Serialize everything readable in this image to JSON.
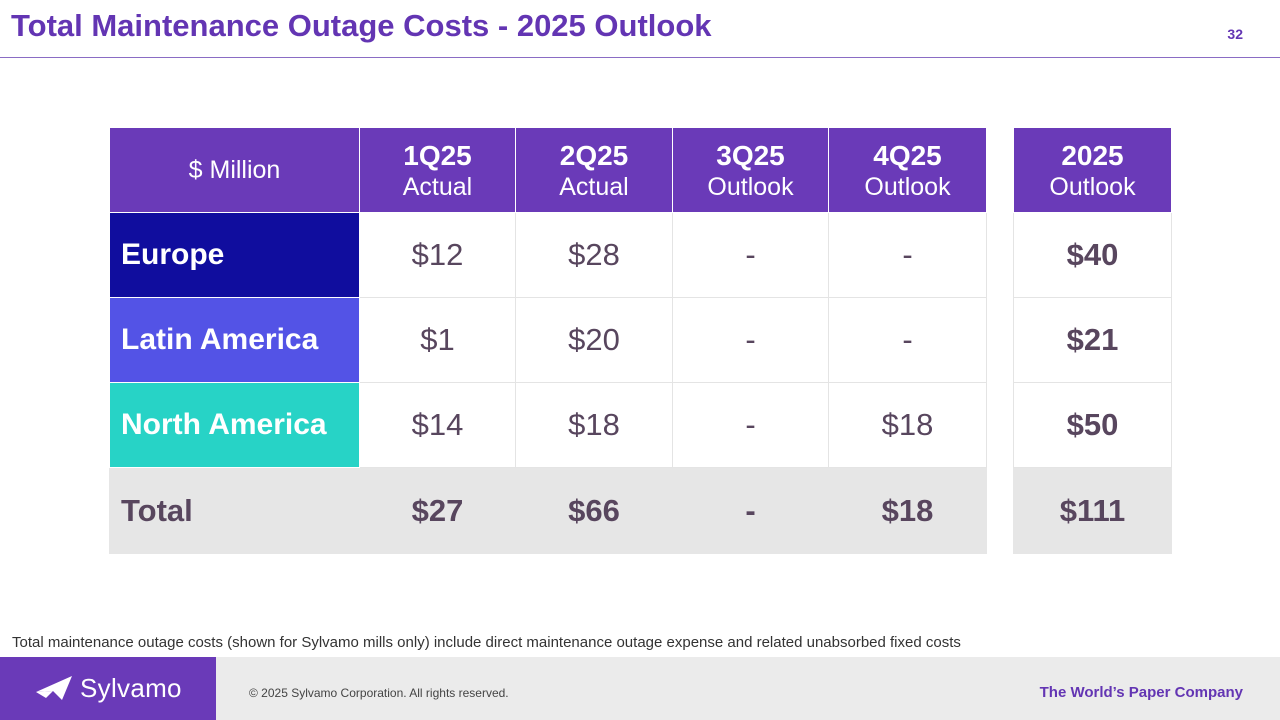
{
  "header": {
    "title": "Total Maintenance Outage Costs - 2025 Outlook",
    "page_number": "32"
  },
  "table": {
    "unit_label": "$ Million",
    "columns": [
      {
        "period": "1Q25",
        "type": "Actual"
      },
      {
        "period": "2Q25",
        "type": "Actual"
      },
      {
        "period": "3Q25",
        "type": "Outlook"
      },
      {
        "period": "4Q25",
        "type": "Outlook"
      }
    ],
    "year_column": {
      "period": "2025",
      "type": "Outlook"
    },
    "rows": [
      {
        "region": "Europe",
        "color": "#100d9e",
        "values": [
          "$12",
          "$28",
          "-",
          "-"
        ],
        "total": "$40"
      },
      {
        "region": "Latin America",
        "color": "#5353e6",
        "values": [
          "$1",
          "$20",
          "-",
          "-"
        ],
        "total": "$21"
      },
      {
        "region": "North America",
        "color": "#27d3c6",
        "values": [
          "$14",
          "$18",
          "-",
          "$18"
        ],
        "total": "$50"
      }
    ],
    "total_row": {
      "label": "Total",
      "values": [
        "$27",
        "$66",
        "-",
        "$18"
      ],
      "total": "$111"
    }
  },
  "footnote": "Total maintenance outage costs (shown for Sylvamo mills only) include direct maintenance outage expense and related unabsorbed fixed costs",
  "footer": {
    "logo_text": "Sylvamo",
    "copyright": "© 2025 Sylvamo Corporation. All rights reserved.",
    "tagline": "The World’s Paper Company"
  },
  "colors": {
    "brand_purple": "#6a3ab8",
    "title_purple": "#6335b3",
    "total_row_bg": "#e6e6e6"
  }
}
